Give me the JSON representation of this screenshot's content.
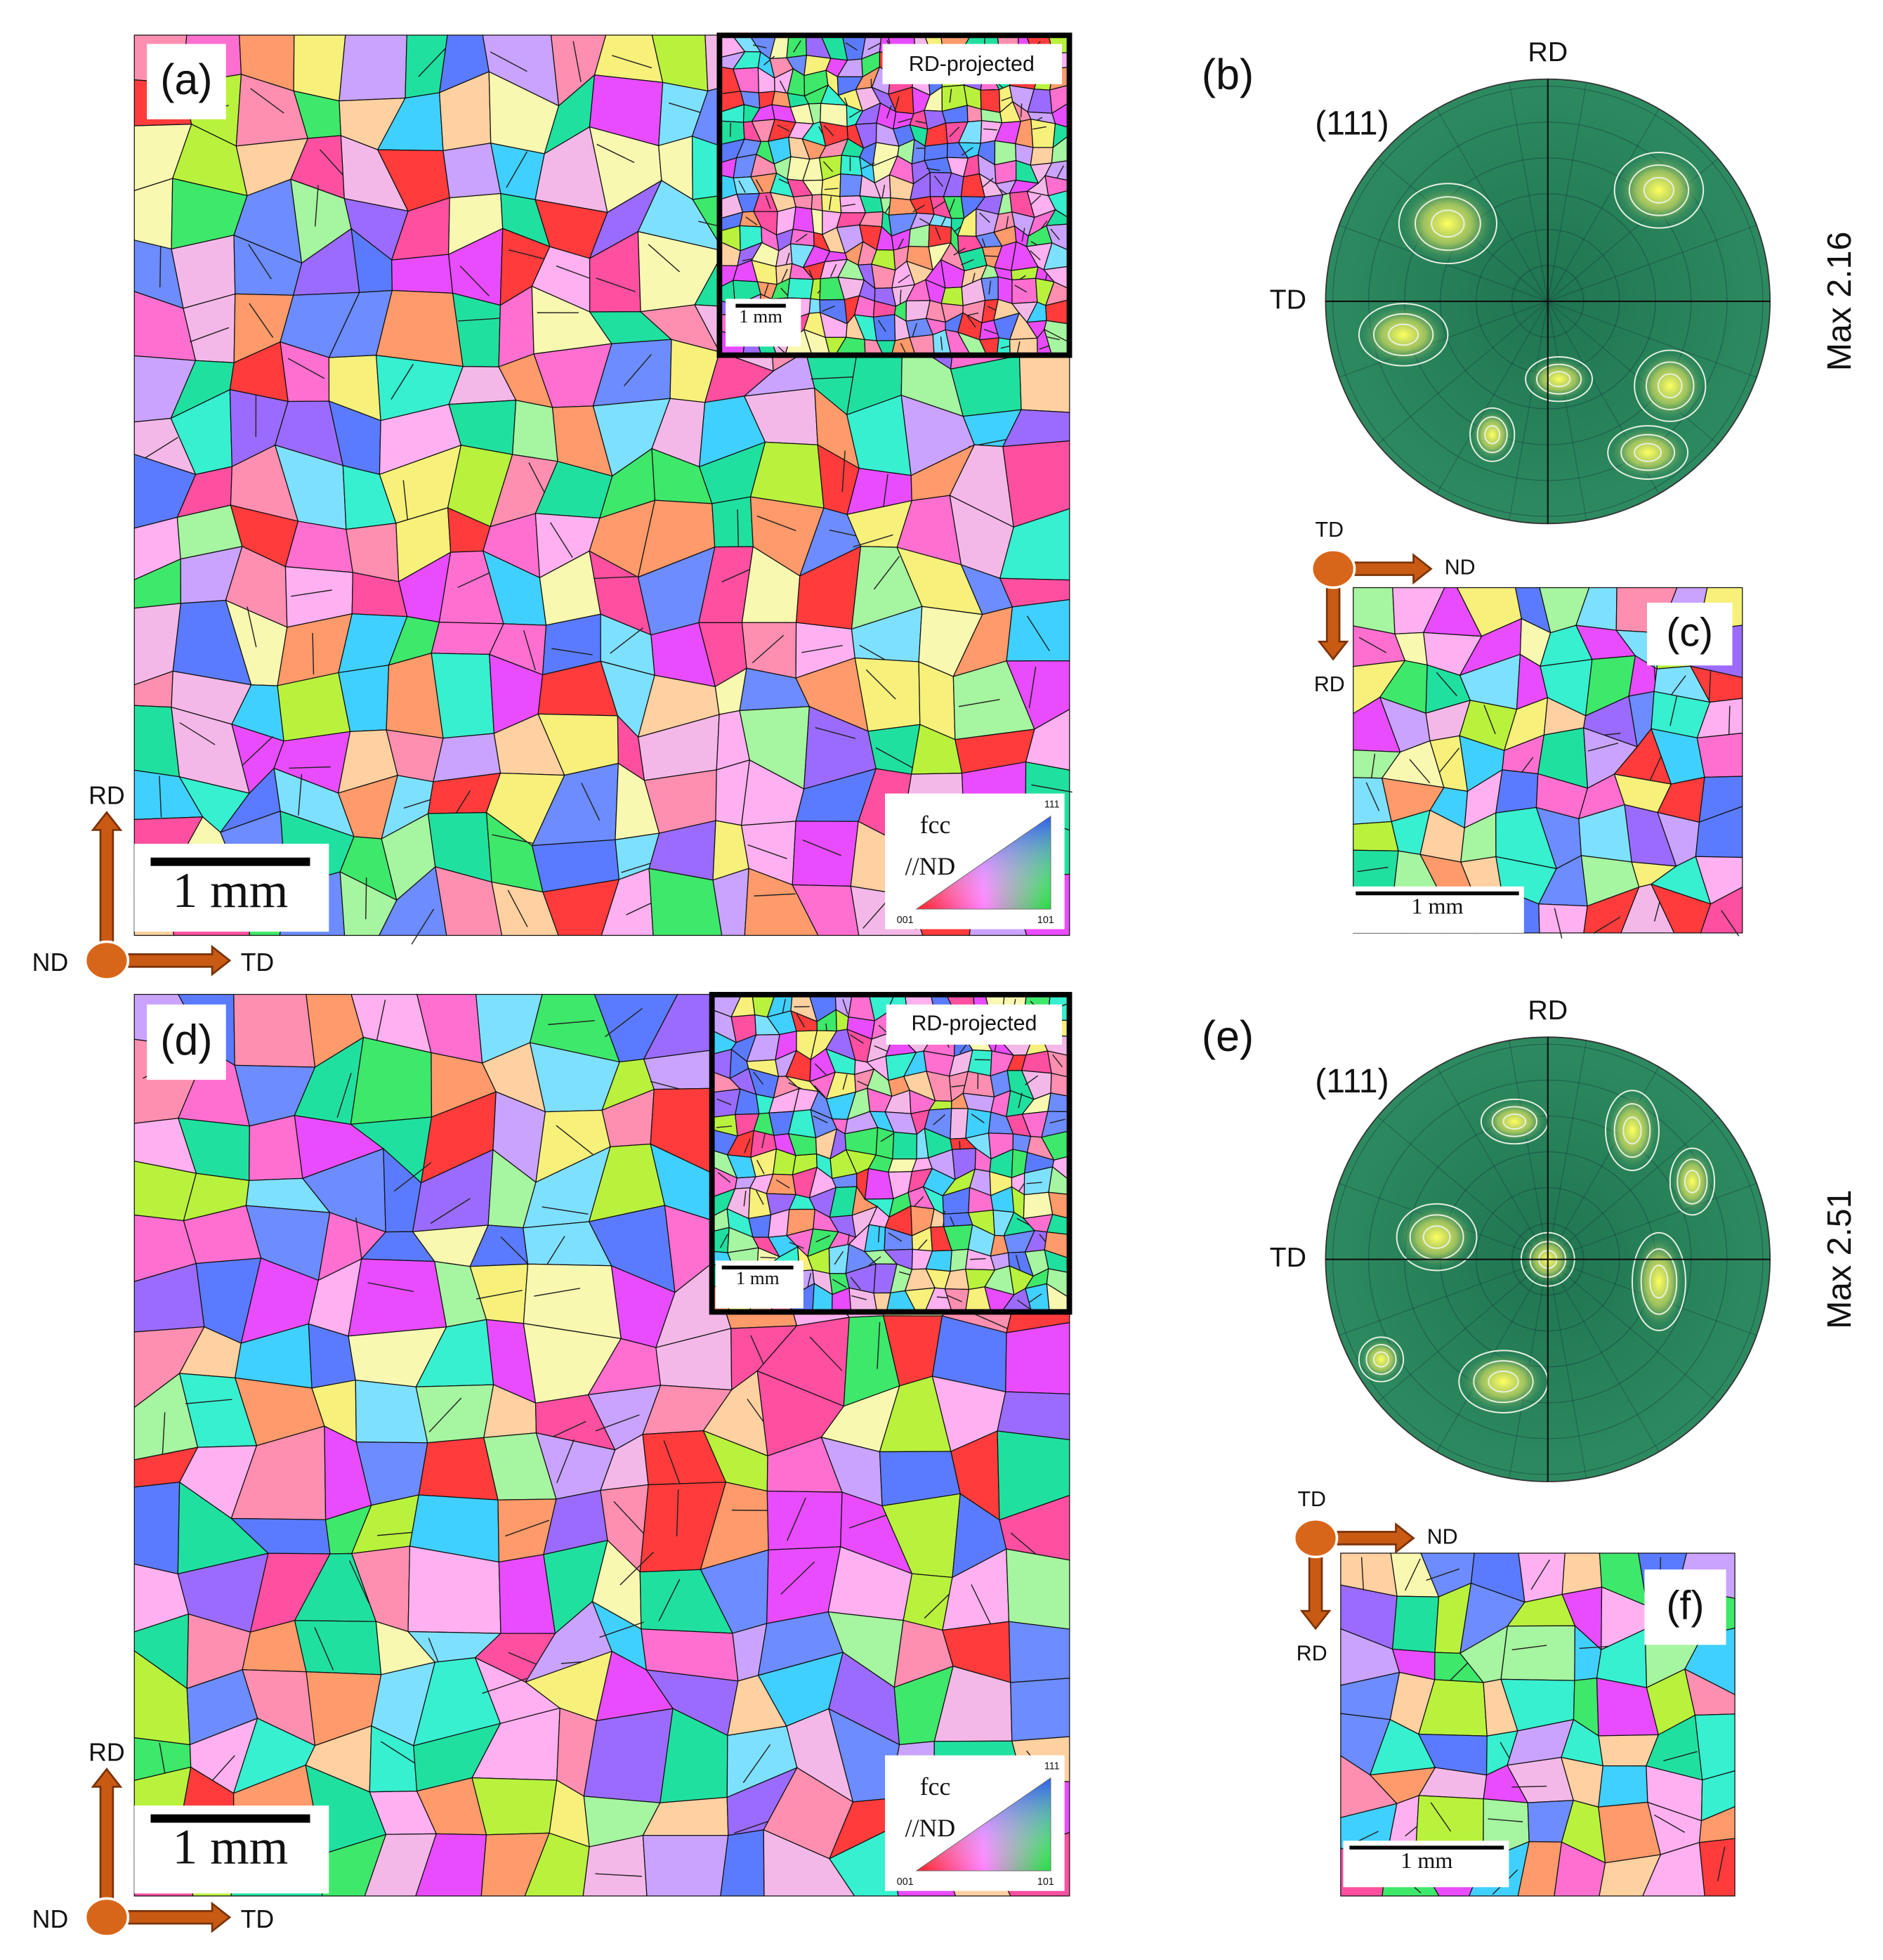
{
  "panels": {
    "a": {
      "label": "(a)",
      "inset_label": "RD-projected",
      "inset_scale": "1 mm",
      "scale": "1 mm",
      "legend": {
        "title": "fcc",
        "axis": "//ND",
        "top": "111",
        "left": "001",
        "right": "101"
      },
      "triad": {
        "up": "RD",
        "origin": "ND",
        "right": "TD"
      }
    },
    "b": {
      "label": "(b)",
      "plane": "(111)",
      "top": "RD",
      "left": "TD",
      "max": "Max 2.16"
    },
    "c": {
      "label": "(c)",
      "scale": "1 mm",
      "triad": {
        "origin": "TD",
        "right": "ND",
        "down": "RD"
      }
    },
    "d": {
      "label": "(d)",
      "inset_label": "RD-projected",
      "inset_scale": "1 mm",
      "scale": "1 mm",
      "legend": {
        "title": "fcc",
        "axis": "//ND",
        "top": "111",
        "left": "001",
        "right": "101"
      },
      "triad": {
        "up": "RD",
        "origin": "ND",
        "right": "TD"
      }
    },
    "e": {
      "label": "(e)",
      "plane": "(111)",
      "top": "RD",
      "left": "TD",
      "max": "Max 2.51"
    },
    "f": {
      "label": "(f)",
      "scale": "1 mm",
      "triad": {
        "origin": "TD",
        "right": "ND",
        "down": "RD"
      }
    }
  }
}
